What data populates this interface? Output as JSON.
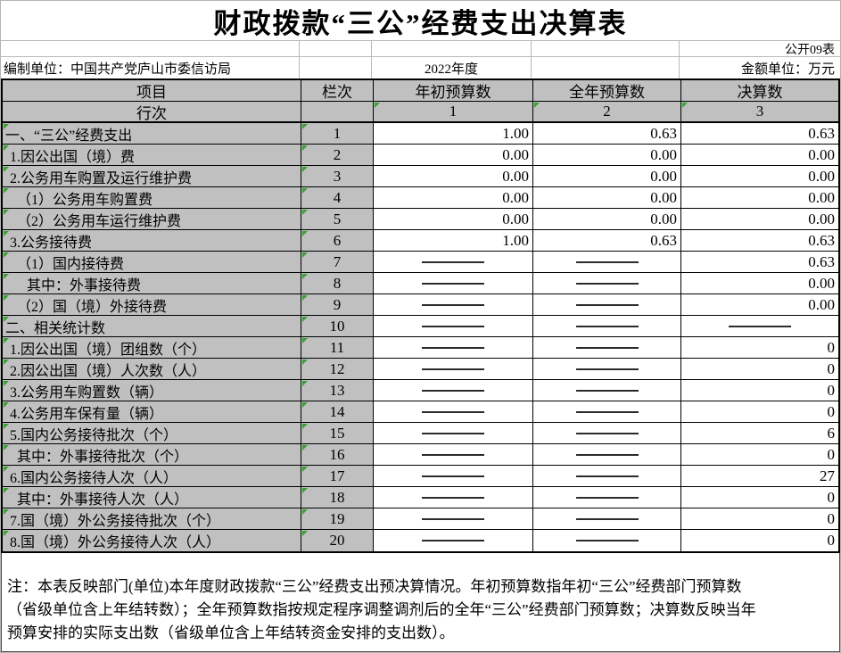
{
  "title": "财政拨款“三公”经费支出决算表",
  "meta": {
    "sheet_code": "公开09表",
    "prepared_by": "编制单位：中国共产党庐山市委信访局",
    "year": "2022年度",
    "amount_unit": "金额单位：万元"
  },
  "headers": {
    "item": "项目",
    "col_index": "栏次",
    "initial_budget": "年初预算数",
    "annual_budget": "全年预算数",
    "final_accounts": "决算数",
    "row_index_label": "行次",
    "col_numbers": [
      "1",
      "2",
      "3"
    ]
  },
  "rows": [
    {
      "label": "一、“三公”经费支出",
      "line": "1",
      "indent": 0,
      "values": [
        "1.00",
        "0.63",
        "0.63"
      ]
    },
    {
      "label": "1.因公出国（境）费",
      "line": "2",
      "indent": 1,
      "values": [
        "0.00",
        "0.00",
        "0.00"
      ]
    },
    {
      "label": "2.公务用车购置及运行维护费",
      "line": "3",
      "indent": 1,
      "values": [
        "0.00",
        "0.00",
        "0.00"
      ]
    },
    {
      "label": "（1）公务用车购置费",
      "line": "4",
      "indent": 2,
      "values": [
        "0.00",
        "0.00",
        "0.00"
      ]
    },
    {
      "label": "（2）公务用车运行维护费",
      "line": "5",
      "indent": 2,
      "values": [
        "0.00",
        "0.00",
        "0.00"
      ]
    },
    {
      "label": "3.公务接待费",
      "line": "6",
      "indent": 1,
      "values": [
        "1.00",
        "0.63",
        "0.63"
      ]
    },
    {
      "label": "（1）国内接待费",
      "line": "7",
      "indent": 2,
      "values": [
        "—",
        "—",
        "0.63"
      ]
    },
    {
      "label": "其中：外事接待费",
      "line": "8",
      "indent": 3,
      "values": [
        "—",
        "—",
        "0.00"
      ]
    },
    {
      "label": "（2）国（境）外接待费",
      "line": "9",
      "indent": 2,
      "values": [
        "—",
        "—",
        "0.00"
      ]
    },
    {
      "label": "二、相关统计数",
      "line": "10",
      "indent": 0,
      "values": [
        "—",
        "—",
        "—"
      ]
    },
    {
      "label": "1.因公出国（境）团组数（个）",
      "line": "11",
      "indent": 1,
      "values": [
        "—",
        "—",
        "0"
      ]
    },
    {
      "label": "2.因公出国（境）人次数（人）",
      "line": "12",
      "indent": 1,
      "values": [
        "—",
        "—",
        "0"
      ]
    },
    {
      "label": "3.公务用车购置数（辆）",
      "line": "13",
      "indent": 1,
      "values": [
        "—",
        "—",
        "0"
      ]
    },
    {
      "label": "4.公务用车保有量（辆）",
      "line": "14",
      "indent": 1,
      "values": [
        "—",
        "—",
        "0"
      ]
    },
    {
      "label": "5.国内公务接待批次（个）",
      "line": "15",
      "indent": 1,
      "values": [
        "—",
        "—",
        "6"
      ]
    },
    {
      "label": "其中：外事接待批次（个）",
      "line": "16",
      "indent": 2,
      "values": [
        "—",
        "—",
        "0"
      ]
    },
    {
      "label": "6.国内公务接待人次（人）",
      "line": "17",
      "indent": 1,
      "values": [
        "—",
        "—",
        "27"
      ]
    },
    {
      "label": "其中：外事接待人次（人）",
      "line": "18",
      "indent": 2,
      "values": [
        "—",
        "—",
        "0"
      ]
    },
    {
      "label": "7.国（境）外公务接待批次（个）",
      "line": "19",
      "indent": 1,
      "values": [
        "—",
        "—",
        "0"
      ]
    },
    {
      "label": "8.国（境）外公务接待人次（人）",
      "line": "20",
      "indent": 1,
      "values": [
        "—",
        "—",
        "0"
      ]
    }
  ],
  "note_lines": [
    "注：本表反映部门(单位)本年度财政拨款“三公”经费支出预决算情况。年初预算数指年初“三公”经费部门预算数",
    "（省级单位含上年结转数）；全年预算数指按规定程序调整调剂后的全年“三公”经费部门预算数；决算数反映当年",
    "预算安排的实际支出数（省级单位含上年结转资金安排的支出数）。"
  ],
  "colors": {
    "header_cell_bg": "#c0c0c0",
    "marker_green": "#35a42f",
    "value_cell_bg": "#ffffff"
  }
}
